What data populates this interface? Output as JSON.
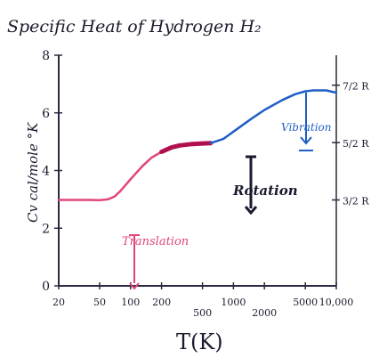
{
  "chart_data": {
    "type": "line",
    "title": "Specific Heat of Hydrogen H₂",
    "xlabel": "T(K)",
    "ylabel": "Cv cal/mole °K",
    "x_scale": "log",
    "xlim": [
      20,
      10000
    ],
    "ylim": [
      0,
      8
    ],
    "x_ticks": [
      {
        "value": 20,
        "label": "20"
      },
      {
        "value": 50,
        "label": "50"
      },
      {
        "value": 100,
        "label": "100"
      },
      {
        "value": 200,
        "label": "200"
      },
      {
        "value": 500,
        "label": "500"
      },
      {
        "value": 1000,
        "label": "1000"
      },
      {
        "value": 2000,
        "label": "2000"
      },
      {
        "value": 5000,
        "label": "5000"
      },
      {
        "value": 10000,
        "label": "10,000"
      }
    ],
    "y_ticks": [
      {
        "value": 0,
        "label": "0"
      },
      {
        "value": 2,
        "label": "2"
      },
      {
        "value": 4,
        "label": "4"
      },
      {
        "value": 6,
        "label": "6"
      },
      {
        "value": 8,
        "label": "8"
      }
    ],
    "right_ticks": [
      {
        "value": 2.98,
        "label": "3/2 R"
      },
      {
        "value": 4.97,
        "label": "5/2 R"
      },
      {
        "value": 6.96,
        "label": "7/2 R"
      }
    ],
    "series": [
      {
        "color": "#e2457a",
        "x": [
          20,
          30,
          40,
          50,
          60,
          70,
          80,
          100,
          130,
          160,
          200
        ],
        "y": [
          2.98,
          2.98,
          2.98,
          2.97,
          3.0,
          3.1,
          3.3,
          3.7,
          4.15,
          4.45,
          4.65
        ]
      },
      {
        "color": "#b01050",
        "x": [
          200,
          250,
          300,
          400,
          500,
          600
        ],
        "y": [
          4.65,
          4.8,
          4.87,
          4.92,
          4.94,
          4.95
        ]
      },
      {
        "color": "#1f5fc6",
        "x": [
          600,
          800,
          1000,
          1500,
          2000,
          3000,
          4000,
          5000,
          6000,
          8000,
          10000
        ],
        "y": [
          4.95,
          5.1,
          5.35,
          5.8,
          6.1,
          6.45,
          6.65,
          6.75,
          6.78,
          6.78,
          6.7
        ]
      }
    ],
    "annotations": [
      {
        "text": "Translation",
        "color": "#e2457a"
      },
      {
        "text": "Rotation",
        "color": "#1a1a2e"
      },
      {
        "text": "Vibration",
        "color": "#1f5fc6"
      }
    ],
    "grid": false
  }
}
